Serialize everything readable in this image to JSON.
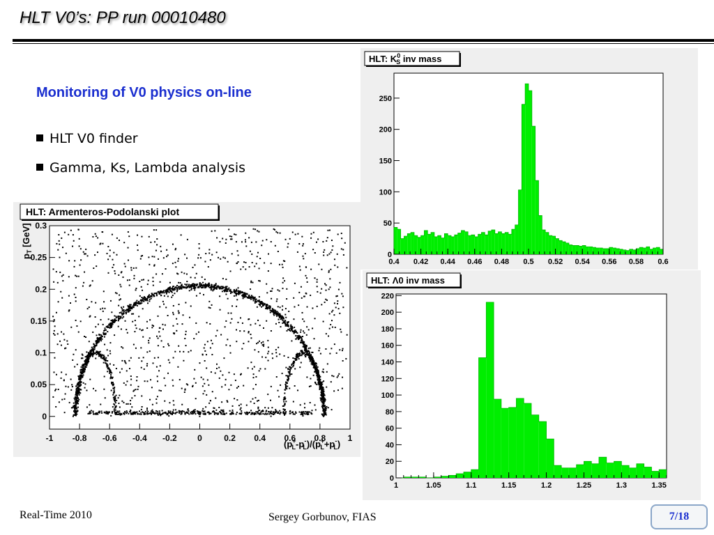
{
  "slide": {
    "title": "HLT V0’s:  PP run 00010480",
    "subtitle": "Monitoring of V0 physics on-line",
    "bullets": [
      "HLT V0 finder",
      "Gamma, Ks, Lambda analysis"
    ],
    "footer_left": "Real-Time 2010",
    "footer_center": "Sergey Gorbunov, FIAS",
    "page": "7/18"
  },
  "colors": {
    "title_blue": "#1a2ecf",
    "hist_fill": "#00ee00",
    "panel_bg": "#efefef"
  },
  "chart_data": [
    {
      "type": "scatter",
      "title": "HLT:  Armenteros-Podolanski plot",
      "ylabel": "p_T [GeV]",
      "xlabel": "(p_L^+ - p_L^-)/(p_L^+ + p_L^-)",
      "xlim": [
        -1,
        1
      ],
      "ylim": [
        -0.02,
        0.3
      ],
      "xticks": [
        "-1",
        "-0.8",
        "-0.6",
        "-0.4",
        "-0.2",
        "0",
        "0.2",
        "0.4",
        "0.6",
        "0.8",
        "1"
      ],
      "yticks": [
        "0",
        "0.05",
        "0.1",
        "0.15",
        "0.2",
        "0.25",
        "0.3"
      ],
      "components": [
        {
          "name": "K0s arc",
          "shape": "ellipse",
          "center_x": 0,
          "radius_x": 0.83,
          "height": 0.205
        },
        {
          "name": "Lambda arc",
          "shape": "arc",
          "center_x": 0.69,
          "radius_x": 0.13,
          "height": 0.1
        },
        {
          "name": "Anti-Lambda arc",
          "shape": "arc",
          "center_x": -0.69,
          "radius_x": 0.13,
          "height": 0.1
        },
        {
          "name": "Gamma band",
          "shape": "band",
          "y": 0.003
        }
      ]
    },
    {
      "type": "bar",
      "title": "HLT:  K0s inv mass",
      "xlim": [
        0.4,
        0.6
      ],
      "ylim": [
        0,
        290
      ],
      "xticks": [
        "0.4",
        "0.42",
        "0.44",
        "0.46",
        "0.48",
        "0.5",
        "0.52",
        "0.54",
        "0.56",
        "0.58",
        "0.6"
      ],
      "yticks": [
        "0",
        "50",
        "100",
        "150",
        "200",
        "250"
      ],
      "bin_start": 0.4,
      "bin_width": 0.0025,
      "values": [
        43,
        40,
        25,
        29,
        33,
        35,
        30,
        27,
        30,
        38,
        32,
        35,
        28,
        30,
        26,
        33,
        30,
        28,
        31,
        34,
        38,
        36,
        30,
        31,
        28,
        32,
        35,
        31,
        37,
        39,
        33,
        36,
        33,
        35,
        32,
        40,
        47,
        103,
        240,
        273,
        262,
        205,
        118,
        62,
        39,
        35,
        30,
        29,
        25,
        22,
        20,
        18,
        15,
        14,
        14,
        13,
        14,
        12,
        12,
        11,
        10,
        10,
        9,
        9,
        11,
        10,
        9,
        8,
        7,
        6,
        8,
        7,
        9,
        11,
        10,
        12,
        8,
        10,
        11,
        8
      ]
    },
    {
      "type": "bar",
      "title": "HLT: Λ0 inv mass",
      "xlim": [
        1.0,
        1.36
      ],
      "ylim": [
        0,
        222
      ],
      "xticks": [
        "1",
        "1.05",
        "1.1",
        "1.15",
        "1.2",
        "1.25",
        "1.3",
        "1.35"
      ],
      "yticks": [
        "0",
        "20",
        "40",
        "60",
        "80",
        "100",
        "120",
        "140",
        "160",
        "180",
        "200",
        "220"
      ],
      "bin_start": 1.0,
      "bin_width": 0.01,
      "values": [
        0,
        1,
        1,
        1,
        0,
        1,
        2,
        3,
        5,
        7,
        10,
        145,
        212,
        95,
        84,
        85,
        96,
        90,
        76,
        68,
        47,
        15,
        12,
        12,
        16,
        20,
        17,
        25,
        18,
        20,
        15,
        12,
        17,
        13,
        8,
        10
      ]
    }
  ]
}
